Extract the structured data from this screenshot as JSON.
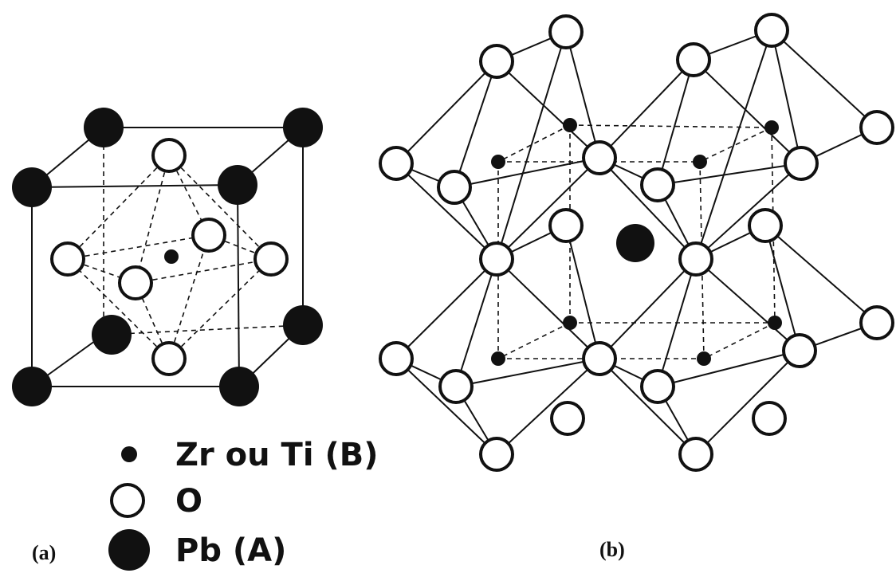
{
  "legend": {
    "items": [
      {
        "label": "Zr ou Ti (B)"
      },
      {
        "label": "O"
      },
      {
        "label": "Pb (A)"
      }
    ]
  },
  "panels": [
    {
      "label": "(a)"
    },
    {
      "label": "(b)"
    }
  ]
}
